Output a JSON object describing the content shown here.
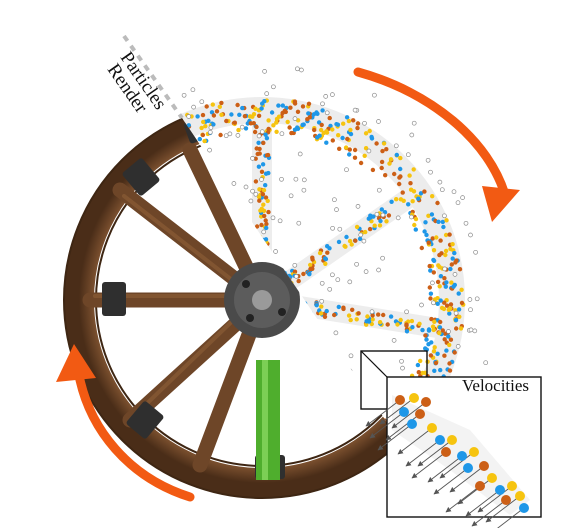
{
  "labels": {
    "particles": "Particles",
    "render": "Render",
    "inset_title": "Velocities"
  },
  "colors": {
    "arrow": "#f25a13",
    "particle_orange": "#cc5f16",
    "particle_yellow": "#f6c40f",
    "particle_blue": "#1e97e8",
    "particle_hollow": "#8a8a8a",
    "wood": "#6b4427",
    "iron": "#3b3b3b",
    "axle": "#52b02e"
  },
  "icons": {
    "rotation_top": "clockwise-arrow-icon",
    "rotation_bottom": "rotation-arrow-icon"
  }
}
